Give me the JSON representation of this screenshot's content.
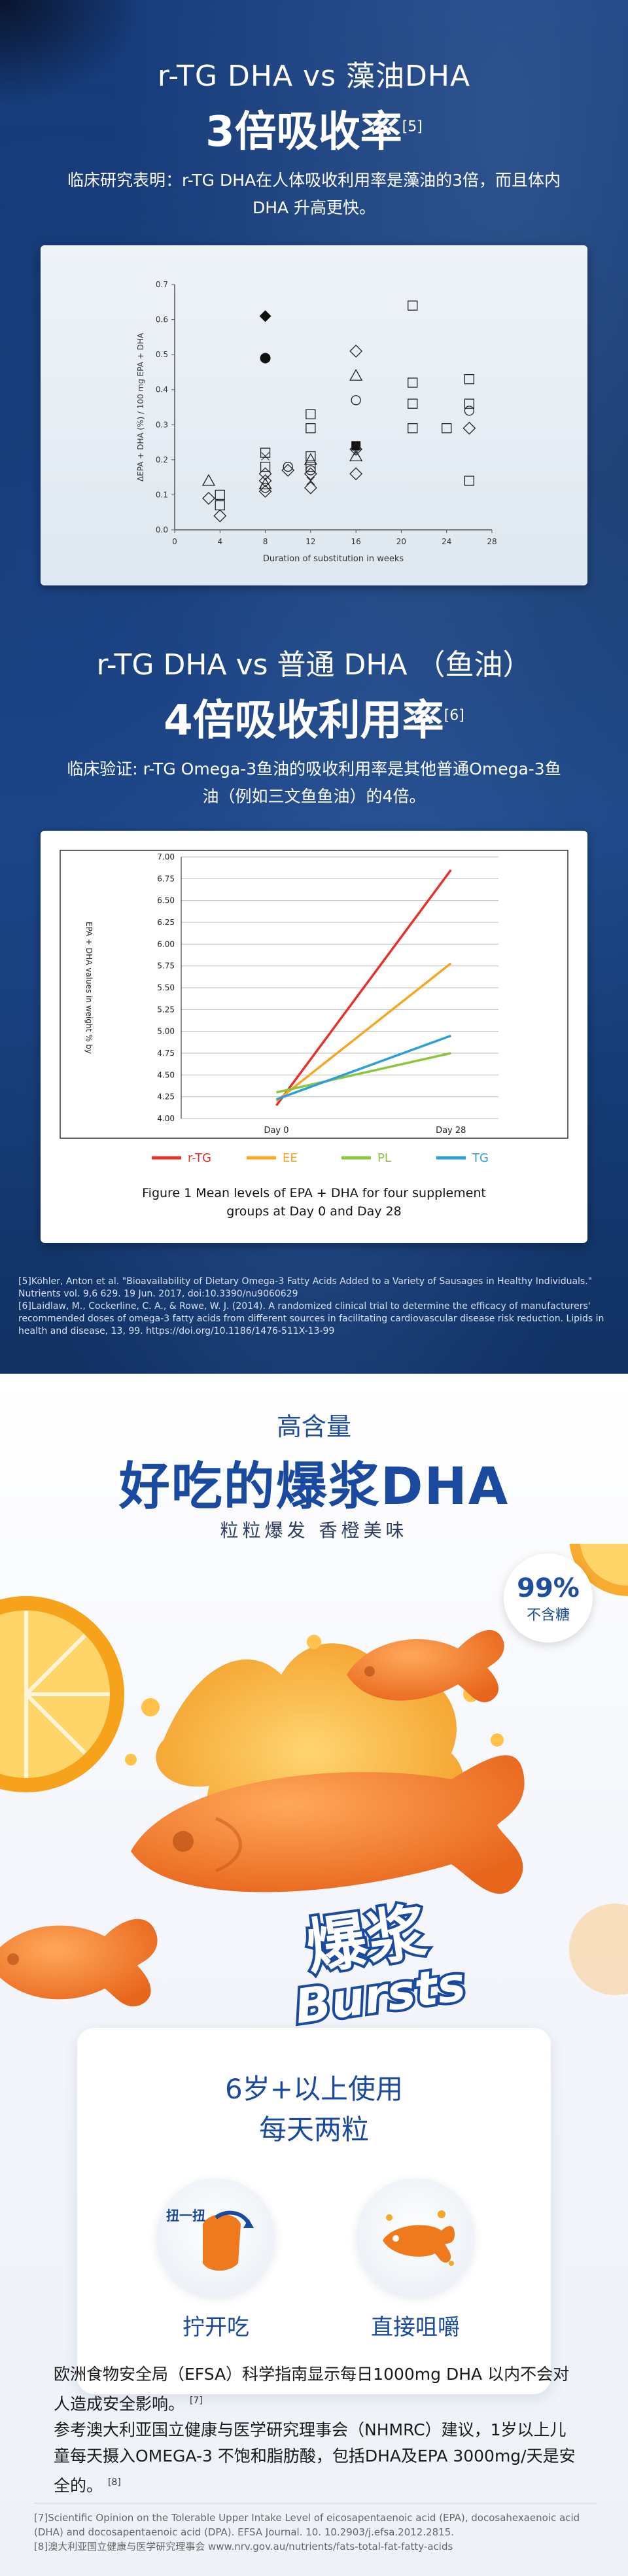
{
  "section1": {
    "title_a": "r-TG DHA vs 藻油DHA",
    "title_b": "3倍吸收率",
    "title_b_ref": "[5]",
    "desc": "临床研究表明：r-TG DHA在人体吸收利用率是藻油的3倍，而且体内DHA 升高更快。"
  },
  "section2": {
    "title_a": "r-TG DHA vs 普通 DHA （鱼油）",
    "title_b": "4倍吸收利用率",
    "title_b_ref": "[6]",
    "desc": "临床验证: r-TG Omega-3鱼油的吸收利用率是其他普通Omega-3鱼油（例如三文鱼鱼油）的4倍。"
  },
  "chart_data": [
    {
      "type": "scatter",
      "title": "",
      "xlabel": "Duration of substitution in weeks",
      "ylabel": "ΔEPA + DHA (%) / 100 mg EPA + DHA",
      "xlim": [
        0,
        28
      ],
      "ylim": [
        0,
        0.7
      ],
      "xticks": [
        0,
        4,
        8,
        12,
        16,
        20,
        24,
        28
      ],
      "yticks": [
        0.0,
        0.1,
        0.2,
        0.3,
        0.4,
        0.5,
        0.6,
        0.7
      ],
      "series": [
        {
          "marker": "filled-diamond",
          "points": [
            [
              8,
              0.61
            ]
          ]
        },
        {
          "marker": "filled-circle",
          "points": [
            [
              8,
              0.49
            ]
          ]
        },
        {
          "marker": "filled-square",
          "points": [
            [
              16,
              0.24
            ]
          ]
        },
        {
          "marker": "open-square",
          "points": [
            [
              21,
              0.64
            ],
            [
              21,
              0.42
            ],
            [
              21,
              0.36
            ],
            [
              21,
              0.29
            ],
            [
              24,
              0.29
            ],
            [
              26,
              0.43
            ],
            [
              26,
              0.36
            ],
            [
              26,
              0.14
            ],
            [
              12,
              0.33
            ],
            [
              12,
              0.29
            ],
            [
              12,
              0.21
            ],
            [
              12,
              0.18
            ],
            [
              8,
              0.22
            ],
            [
              8,
              0.18
            ],
            [
              4,
              0.1
            ],
            [
              4,
              0.07
            ]
          ]
        },
        {
          "marker": "open-diamond",
          "points": [
            [
              16,
              0.51
            ],
            [
              16,
              0.23
            ],
            [
              16,
              0.16
            ],
            [
              12,
              0.16
            ],
            [
              12,
              0.12
            ],
            [
              10,
              0.17
            ],
            [
              8,
              0.16
            ],
            [
              8,
              0.14
            ],
            [
              8,
              0.11
            ],
            [
              4,
              0.04
            ],
            [
              3,
              0.09
            ],
            [
              26,
              0.29
            ]
          ]
        },
        {
          "marker": "open-triangle",
          "points": [
            [
              16,
              0.44
            ],
            [
              16,
              0.21
            ],
            [
              12,
              0.2
            ],
            [
              3,
              0.14
            ],
            [
              8,
              0.13
            ]
          ]
        },
        {
          "marker": "open-circle",
          "points": [
            [
              16,
              0.37
            ],
            [
              12,
              0.17
            ],
            [
              8,
              0.12
            ],
            [
              26,
              0.34
            ],
            [
              10,
              0.18
            ]
          ]
        },
        {
          "marker": "cross",
          "points": [
            [
              8,
              0.21
            ],
            [
              12,
              0.14
            ],
            [
              16,
              0.22
            ]
          ]
        }
      ]
    },
    {
      "type": "line",
      "title": "Figure 1 Mean levels of EPA + DHA for four supplement groups at Day 0 and Day 28",
      "xlabel": "",
      "ylabel": "EPA + DHA values in weight % by",
      "categories": [
        "Day 0",
        "Day 28"
      ],
      "ylim": [
        4.0,
        7.0
      ],
      "yticks": [
        4.0,
        4.25,
        4.5,
        4.75,
        5.0,
        5.25,
        5.5,
        5.75,
        6.0,
        6.25,
        6.5,
        6.75,
        7.0
      ],
      "legend_position": "bottom",
      "series": [
        {
          "name": "r-TG",
          "color": "#e8302a",
          "values": [
            4.15,
            6.85
          ]
        },
        {
          "name": "EE",
          "color": "#f5a623",
          "values": [
            4.2,
            5.78
          ]
        },
        {
          "name": "PL",
          "color": "#8cc63e",
          "values": [
            4.3,
            4.75
          ]
        },
        {
          "name": "TG",
          "color": "#2b9fd6",
          "values": [
            4.22,
            4.95
          ]
        }
      ]
    }
  ],
  "refs_top": [
    "[5]Köhler, Anton et al.   \"Bioavailability of Dietary Omega-3 Fatty Acids Added to a Variety of Sausages in Healthy Individuals.\"   Nutrients   vol. 9,6 629. 19 Jun. 2017, doi:10.3390/nu9060629",
    "[6]Laidlaw, M., Cockerline, C. A., & Rowe, W. J. (2014). A randomized clinical trial to determine the efficacy of manufacturers' recommended doses of omega-3 fatty acids from different sources in facilitating cardiovascular disease risk reduction.   Lipids in health and disease,   13, 99. https://doi.org/10.1186/1476-511X-13-99"
  ],
  "section3": {
    "tag": "高含量",
    "title": "好吃的爆浆DHA",
    "subtitle": "粒粒爆发  香橙美味",
    "badge_value": "99%",
    "badge_text": "不含糖",
    "logo_cn": "爆浆",
    "logo_en": "Bursts"
  },
  "usage": {
    "title_a": "6岁+以上使用",
    "title_b": "每天两粒",
    "icon1_hint": "扭一扭",
    "icon1_label": "拧开吃",
    "icon2_label": "直接咀嚼",
    "desc_1": "欧洲食物安全局（EFSA）科学指南显示每日1000mg DHA 以内不会对人造成安全影响。",
    "desc_1_ref": "[7]",
    "desc_2": "参考澳大利亚国立健康与医学研究理事会（NHMRC）建议，1岁以上儿童每天摄入OMEGA-3 不饱和脂肪酸，包括DHA及EPA 3000mg/天是安全的。",
    "desc_2_ref": "[8]"
  },
  "refs_bottom": [
    "[7]Scientific Opinion on the Tolerable Upper Intake Level of eicosapentaenoic acid (EPA), docosahexaenoic acid (DHA) and docosapentaenoic acid (DPA). EFSA Journal. 10. 10.2903/j.efsa.2012.2815.",
    "[8]澳大利亚国立健康与医学研究理事会 www.nrv.gov.au/nutrients/fats-total-fat-fatty-acids"
  ],
  "colors": {
    "brand_blue": "#1a4aa0",
    "orange": "#f28a2e",
    "bg_blue": "#153a78"
  }
}
